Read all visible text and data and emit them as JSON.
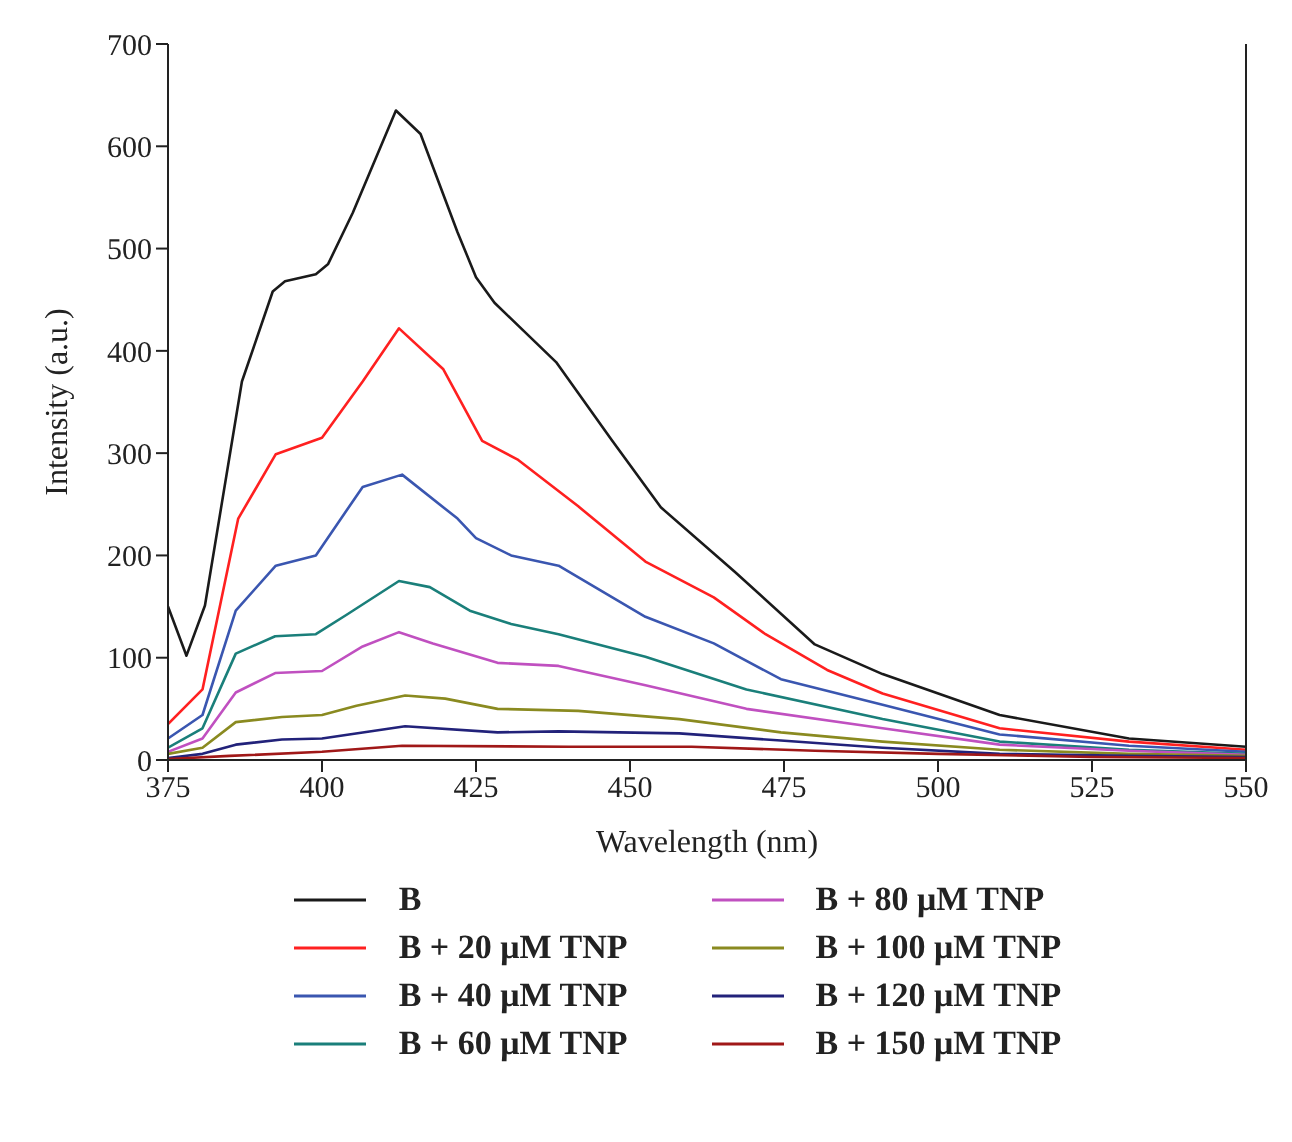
{
  "chart_data": {
    "type": "line",
    "xlabel": "Wavelength (nm)",
    "ylabel": "Intensity (a.u.)",
    "xlim": [
      375,
      550
    ],
    "xticks": [
      375,
      400,
      425,
      450,
      475,
      500,
      525,
      550
    ],
    "ylim": [
      0,
      700
    ],
    "yticks": [
      0,
      100,
      200,
      300,
      400,
      500,
      600,
      700
    ],
    "grid": false,
    "legend": "bottom",
    "marker": "none",
    "line_style": "solid",
    "series": [
      {
        "name": "B",
        "color": "#1a1a1a",
        "x": [
          375,
          378,
          381,
          387,
          392,
          394,
          399,
          401,
          405,
          412,
          416,
          422,
          425,
          428,
          438,
          447,
          455,
          467,
          480,
          491,
          510,
          531,
          550
        ],
        "values": [
          150,
          102,
          151,
          370,
          458,
          468,
          475,
          485,
          535,
          635,
          612,
          516,
          472,
          447,
          389,
          313,
          247,
          184,
          113,
          84,
          44,
          21,
          13
        ]
      },
      {
        "name": "B + 20 μM TNP",
        "color": "#ff2020",
        "x": [
          375,
          380.6,
          386.4,
          392.5,
          400,
          406.6,
          412.5,
          419.7,
          426,
          431.7,
          441.6,
          452.5,
          463.6,
          472,
          482,
          491,
          510,
          531,
          550
        ],
        "values": [
          35,
          69,
          236,
          299,
          315,
          370,
          422,
          382,
          312,
          294,
          248,
          194,
          159,
          123,
          88,
          65,
          31,
          18,
          10
        ]
      },
      {
        "name": "B + 40 μM TNP",
        "color": "#3a56b0",
        "x": [
          375,
          380.6,
          386,
          392.5,
          399,
          406.6,
          413,
          422,
          425,
          430.7,
          438.4,
          452.5,
          463.6,
          474.5,
          491,
          510,
          531,
          550
        ],
        "values": [
          21,
          44,
          146,
          190,
          200,
          267,
          279,
          236,
          217,
          200,
          190,
          140,
          114,
          79,
          54,
          25,
          14,
          8
        ]
      },
      {
        "name": "B + 60 μM TNP",
        "color": "#1a7f7a",
        "x": [
          375,
          380.6,
          386,
          392.4,
          399,
          404,
          412.5,
          417.5,
          424,
          430.7,
          438.4,
          452.5,
          468.9,
          491,
          510,
          531,
          550
        ],
        "values": [
          12,
          31,
          104,
          121,
          123,
          142,
          175,
          169,
          146,
          133,
          123,
          101,
          69,
          40,
          18,
          10,
          6
        ]
      },
      {
        "name": "B + 80 μM TNP",
        "color": "#c050c0",
        "x": [
          375,
          380.6,
          386,
          392.4,
          400,
          406.6,
          412.5,
          418,
          428.5,
          438.4,
          452.5,
          468.9,
          491,
          510,
          531,
          550
        ],
        "values": [
          8,
          21,
          66,
          85,
          87,
          111,
          125,
          114,
          95,
          92,
          73,
          50,
          31,
          15,
          9,
          5
        ]
      },
      {
        "name": "B + 100 μM TNP",
        "color": "#8a8a20",
        "x": [
          375,
          380.6,
          386,
          393.5,
          400,
          405.6,
          413.5,
          420,
          428.5,
          441.6,
          458,
          474.5,
          491,
          510,
          531,
          550
        ],
        "values": [
          6,
          12,
          37,
          42,
          44,
          53,
          63,
          60,
          50,
          48,
          40,
          27,
          18,
          10,
          6,
          4
        ]
      },
      {
        "name": "B + 120 μM TNP",
        "color": "#22227a",
        "x": [
          375,
          380.6,
          386,
          393.5,
          400,
          413.5,
          428.5,
          438.4,
          458,
          474.5,
          491,
          510,
          531,
          550
        ],
        "values": [
          2,
          6,
          15,
          20,
          21,
          33,
          27,
          28,
          26,
          19,
          12,
          6,
          4,
          3
        ]
      },
      {
        "name": "B + 150 μM TNP",
        "color": "#a01818",
        "x": [
          375,
          385,
          400,
          413,
          440,
          460,
          480,
          500,
          525,
          550
        ],
        "values": [
          1,
          4,
          8,
          14,
          13,
          13,
          9,
          6,
          3,
          2
        ]
      }
    ]
  }
}
